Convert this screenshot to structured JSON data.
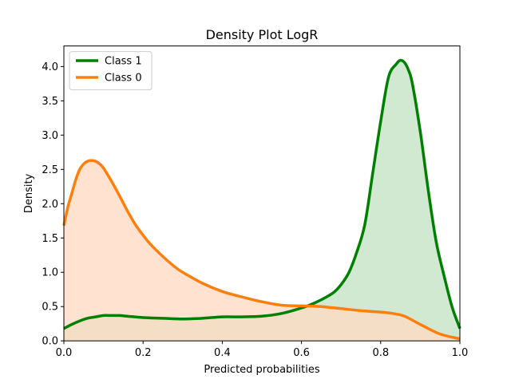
{
  "chart_data": {
    "type": "area",
    "title": "Density Plot LogR",
    "xlabel": "Predicted probabilities",
    "ylabel": "Density",
    "xlim": [
      0.0,
      1.0
    ],
    "ylim": [
      0.0,
      4.3
    ],
    "xticks": [
      0.0,
      0.2,
      0.4,
      0.6,
      0.8,
      1.0
    ],
    "xtick_labels": [
      "0.0",
      "0.2",
      "0.4",
      "0.6",
      "0.8",
      "1.0"
    ],
    "yticks": [
      0.0,
      0.5,
      1.0,
      1.5,
      2.0,
      2.5,
      3.0,
      3.5,
      4.0
    ],
    "ytick_labels": [
      "0.0",
      "0.5",
      "1.0",
      "1.5",
      "2.0",
      "2.5",
      "3.0",
      "3.5",
      "4.0"
    ],
    "grid": false,
    "legend_position": "top-left",
    "series": [
      {
        "name": "Class 1",
        "color": "#008000",
        "fill": "#c2e2c2",
        "x": [
          0.0,
          0.02,
          0.04,
          0.06,
          0.08,
          0.1,
          0.12,
          0.14,
          0.16,
          0.2,
          0.25,
          0.3,
          0.35,
          0.4,
          0.45,
          0.5,
          0.55,
          0.6,
          0.62,
          0.65,
          0.68,
          0.7,
          0.72,
          0.74,
          0.76,
          0.78,
          0.8,
          0.82,
          0.84,
          0.85,
          0.86,
          0.87,
          0.88,
          0.9,
          0.92,
          0.94,
          0.96,
          0.98,
          1.0
        ],
        "y": [
          0.18,
          0.24,
          0.29,
          0.33,
          0.35,
          0.37,
          0.37,
          0.37,
          0.36,
          0.34,
          0.33,
          0.32,
          0.33,
          0.35,
          0.35,
          0.36,
          0.4,
          0.48,
          0.52,
          0.6,
          0.7,
          0.82,
          1.0,
          1.3,
          1.7,
          2.45,
          3.2,
          3.85,
          4.04,
          4.09,
          4.06,
          3.95,
          3.75,
          3.05,
          2.2,
          1.45,
          0.95,
          0.5,
          0.18
        ]
      },
      {
        "name": "Class 0",
        "color": "#ff7f0e",
        "fill": "#ffdac0",
        "x": [
          0.0,
          0.01,
          0.02,
          0.03,
          0.04,
          0.05,
          0.06,
          0.07,
          0.08,
          0.09,
          0.1,
          0.12,
          0.14,
          0.16,
          0.18,
          0.2,
          0.22,
          0.25,
          0.28,
          0.3,
          0.35,
          0.4,
          0.45,
          0.5,
          0.55,
          0.6,
          0.65,
          0.7,
          0.75,
          0.8,
          0.83,
          0.86,
          0.9,
          0.95,
          1.0
        ],
        "y": [
          1.68,
          1.95,
          2.15,
          2.35,
          2.5,
          2.58,
          2.62,
          2.63,
          2.62,
          2.58,
          2.52,
          2.33,
          2.12,
          1.9,
          1.7,
          1.54,
          1.4,
          1.23,
          1.08,
          1.0,
          0.84,
          0.72,
          0.64,
          0.57,
          0.52,
          0.51,
          0.5,
          0.47,
          0.44,
          0.42,
          0.4,
          0.36,
          0.24,
          0.1,
          0.03
        ]
      }
    ]
  }
}
